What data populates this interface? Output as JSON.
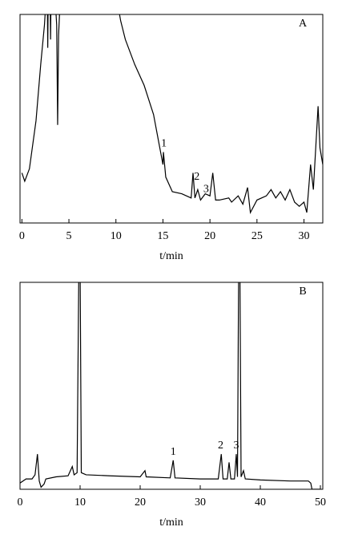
{
  "chart_data": [
    {
      "type": "line",
      "panel_label": "A",
      "xlabel": "t/min",
      "x": [
        0,
        0.3,
        0.8,
        1.5,
        2.0,
        2.4,
        2.6,
        2.7,
        2.75,
        2.8,
        3.0,
        3.05,
        3.1,
        3.5,
        3.7,
        3.8,
        3.9,
        4.1,
        10,
        10.5,
        11,
        12,
        13,
        14,
        14.5,
        15,
        15.05,
        15.3,
        16,
        17,
        18,
        18.2,
        18.4,
        18.7,
        19,
        19.5,
        20,
        20.3,
        20.6,
        21,
        22,
        22.3,
        23,
        23.5,
        24,
        24.3,
        25,
        26,
        26.5,
        27,
        27.5,
        28,
        28.5,
        29,
        29.5,
        30,
        30.3,
        30.7,
        31,
        31.5,
        31.7,
        32
      ],
      "values": [
        24,
        20,
        26,
        49,
        76,
        95,
        110,
        110,
        84,
        110,
        110,
        88,
        110,
        110,
        95,
        47,
        90,
        110,
        110,
        97,
        88,
        76,
        66,
        52,
        40,
        28,
        34,
        22,
        15,
        14,
        12,
        24,
        12,
        16,
        11,
        14,
        13,
        24,
        11,
        11,
        12,
        10,
        13,
        9,
        17,
        5,
        11,
        13,
        16,
        12,
        15,
        11,
        16,
        10,
        8,
        10,
        5,
        28,
        16,
        56,
        36,
        28
      ],
      "color": "#000000",
      "xlim": [
        -0.2,
        32
      ],
      "ylim": [
        0,
        100
      ],
      "xticks": [
        0,
        5,
        10,
        15,
        20,
        25,
        30
      ],
      "annotations": [
        {
          "text": "1",
          "x": 15.1,
          "y": 38
        },
        {
          "text": "2",
          "x": 18.6,
          "y": 22
        },
        {
          "text": "3",
          "x": 19.6,
          "y": 16
        }
      ]
    },
    {
      "type": "line",
      "panel_label": "B",
      "xlabel": "t/min",
      "x": [
        0,
        1,
        2,
        2.5,
        2.9,
        3.2,
        3.5,
        4,
        4.3,
        6,
        8,
        8.7,
        9,
        9.5,
        9.8,
        10,
        10.2,
        11,
        15,
        20,
        20.8,
        21,
        25,
        25.5,
        25.8,
        30,
        33,
        33.5,
        33.8,
        34.5,
        34.8,
        35.1,
        35.7,
        36,
        36.2,
        36.4,
        36.6,
        36.8,
        37.2,
        37.5,
        40,
        45,
        48,
        48.4,
        48.6,
        50
      ],
      "values": [
        3,
        5,
        5,
        7,
        17,
        4,
        1,
        2.5,
        5,
        6,
        6.5,
        11,
        7,
        8,
        110,
        110,
        8,
        7,
        6.5,
        6,
        9,
        6,
        5.5,
        14,
        5.5,
        5,
        5,
        17,
        5,
        5,
        13,
        5,
        5,
        17,
        6,
        110,
        110,
        6,
        9,
        5,
        4.5,
        4,
        4,
        3,
        0,
        0
      ],
      "color": "#000000",
      "xlim": [
        0,
        50.4
      ],
      "ylim": [
        0,
        100
      ],
      "xticks": [
        0,
        10,
        20,
        30,
        40,
        50
      ],
      "annotations": [
        {
          "text": "1",
          "x": 25.5,
          "y": 18
        },
        {
          "text": "2",
          "x": 33.4,
          "y": 21
        },
        {
          "text": "3",
          "x": 36.0,
          "y": 21
        }
      ]
    }
  ]
}
